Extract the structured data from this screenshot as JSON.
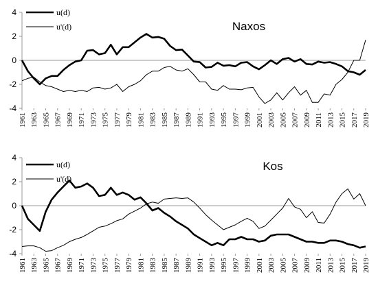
{
  "chart_data": [
    {
      "type": "line",
      "title": "Naxos",
      "xlabel": "",
      "ylabel": "",
      "ylim": [
        -4,
        4
      ],
      "yticks": [
        4,
        2,
        0,
        -2,
        -4
      ],
      "x": [
        1961,
        1962,
        1963,
        1964,
        1965,
        1966,
        1967,
        1968,
        1969,
        1970,
        1971,
        1972,
        1973,
        1974,
        1975,
        1976,
        1977,
        1978,
        1979,
        1980,
        1981,
        1982,
        1983,
        1984,
        1985,
        1986,
        1987,
        1988,
        1989,
        1990,
        1991,
        1992,
        1993,
        1994,
        1995,
        1996,
        1997,
        1998,
        1999,
        2000,
        2001,
        2002,
        2003,
        2004,
        2005,
        2006,
        2007,
        2008,
        2009,
        2010,
        2011,
        2012,
        2013,
        2014,
        2015,
        2016,
        2017,
        2018,
        2019
      ],
      "xtick_labels": [
        "1961",
        "1963",
        "1965",
        "1967",
        "1969",
        "1971",
        "1973",
        "1975",
        "1977",
        "1979",
        "1981",
        "1983",
        "1985",
        "1987",
        "1989",
        "1991",
        "1993",
        "1995",
        "1997",
        "1999",
        "2001",
        "2003",
        "2005",
        "2007",
        "2009",
        "2011",
        "2013",
        "2015",
        "2017",
        "2019"
      ],
      "legend_position": "top-left",
      "series": [
        {
          "name": "u(d)",
          "color": "#000000",
          "style": "thick",
          "values": [
            0,
            -0.9,
            -1.5,
            -2.0,
            -1.5,
            -1.3,
            -1.3,
            -0.8,
            -0.4,
            -0.1,
            0.0,
            0.8,
            0.85,
            0.5,
            0.6,
            1.3,
            0.5,
            1.1,
            1.1,
            1.5,
            1.9,
            2.2,
            1.9,
            1.95,
            1.8,
            1.2,
            0.85,
            0.9,
            0.4,
            -0.1,
            -0.15,
            -0.6,
            -0.55,
            -0.2,
            -0.45,
            -0.4,
            -0.5,
            -0.2,
            -0.15,
            -0.5,
            -0.75,
            -0.4,
            0.0,
            -0.3,
            0.1,
            0.2,
            -0.1,
            0.1,
            -0.3,
            -0.35,
            -0.1,
            -0.2,
            -0.15,
            -0.3,
            -0.5,
            -0.9,
            -1.0,
            -1.2,
            -0.8
          ]
        },
        {
          "name": "u'(d)",
          "color": "#000000",
          "style": "thin",
          "values": [
            -1.7,
            -1.5,
            -1.4,
            -1.8,
            -2.1,
            -2.2,
            -2.4,
            -2.6,
            -2.5,
            -2.6,
            -2.5,
            -2.6,
            -2.3,
            -2.25,
            -2.4,
            -2.3,
            -2.0,
            -2.6,
            -2.2,
            -2.0,
            -1.7,
            -1.2,
            -0.9,
            -0.9,
            -0.6,
            -0.5,
            -0.8,
            -0.9,
            -0.7,
            -1.2,
            -1.8,
            -1.8,
            -2.4,
            -2.5,
            -2.1,
            -2.4,
            -2.4,
            -2.45,
            -2.3,
            -2.25,
            -3.05,
            -3.6,
            -3.3,
            -2.7,
            -3.3,
            -2.7,
            -2.2,
            -2.9,
            -2.5,
            -3.5,
            -3.5,
            -2.8,
            -2.9,
            -2.0,
            -1.6,
            -1.0,
            0.0,
            0.0,
            1.7
          ]
        }
      ]
    },
    {
      "type": "line",
      "title": "Kos",
      "xlabel": "",
      "ylabel": "",
      "ylim": [
        -4,
        4
      ],
      "yticks": [
        4,
        2,
        0,
        -2,
        -4
      ],
      "x": [
        1961,
        1962,
        1963,
        1964,
        1965,
        1966,
        1967,
        1968,
        1969,
        1970,
        1971,
        1972,
        1973,
        1974,
        1975,
        1976,
        1977,
        1978,
        1979,
        1980,
        1981,
        1982,
        1983,
        1984,
        1985,
        1986,
        1987,
        1988,
        1989,
        1990,
        1991,
        1992,
        1993,
        1994,
        1995,
        1996,
        1997,
        1998,
        1999,
        2000,
        2001,
        2002,
        2003,
        2004,
        2005,
        2006,
        2007,
        2008,
        2009,
        2010,
        2011,
        2012,
        2013,
        2014,
        2015,
        2016,
        2017,
        2018,
        2019
      ],
      "xtick_labels": [
        "1961",
        "1963",
        "1965",
        "1967",
        "1969",
        "1971",
        "1973",
        "1975",
        "1977",
        "1979",
        "1981",
        "1983",
        "1985",
        "1987",
        "1989",
        "1991",
        "1993",
        "1995",
        "1997",
        "1999",
        "2001",
        "2003",
        "2005",
        "2007",
        "2009",
        "2011",
        "2013",
        "2015",
        "2017",
        "2019"
      ],
      "legend_position": "top-left",
      "series": [
        {
          "name": "u(d)",
          "color": "#000000",
          "style": "thick",
          "values": [
            0,
            -1.1,
            -1.6,
            -2.1,
            -0.5,
            0.5,
            1.1,
            1.6,
            2.1,
            1.5,
            1.6,
            1.85,
            1.5,
            0.8,
            0.9,
            1.5,
            0.9,
            1.1,
            0.9,
            0.5,
            0.7,
            0.2,
            -0.4,
            -0.2,
            -0.6,
            -0.9,
            -1.3,
            -1.6,
            -1.9,
            -2.4,
            -2.7,
            -3.0,
            -3.3,
            -3.1,
            -3.3,
            -2.8,
            -2.8,
            -2.6,
            -2.8,
            -2.8,
            -3.0,
            -2.9,
            -2.5,
            -2.4,
            -2.4,
            -2.4,
            -2.6,
            -2.8,
            -3.0,
            -3.0,
            -3.1,
            -3.1,
            -2.9,
            -2.9,
            -3.0,
            -3.2,
            -3.3,
            -3.5,
            -3.4
          ]
        },
        {
          "name": "u'(d)",
          "color": "#000000",
          "style": "thin",
          "values": [
            -3.4,
            -3.35,
            -3.35,
            -3.5,
            -3.8,
            -3.75,
            -3.5,
            -3.3,
            -3.0,
            -2.8,
            -2.65,
            -2.4,
            -2.1,
            -1.8,
            -1.7,
            -1.5,
            -1.25,
            -1.1,
            -0.7,
            -0.45,
            -0.2,
            0.15,
            0.3,
            0.2,
            0.55,
            0.6,
            0.65,
            0.6,
            0.65,
            0.3,
            -0.2,
            -0.75,
            -1.2,
            -1.6,
            -2.0,
            -1.8,
            -1.6,
            -1.3,
            -1.05,
            -1.3,
            -1.9,
            -1.7,
            -1.2,
            -0.7,
            -0.2,
            0.6,
            -0.1,
            -0.3,
            -1.0,
            -0.5,
            -1.4,
            -1.45,
            -0.7,
            0.3,
            1.0,
            1.4,
            0.55,
            1.0,
            0.0
          ]
        }
      ]
    }
  ]
}
